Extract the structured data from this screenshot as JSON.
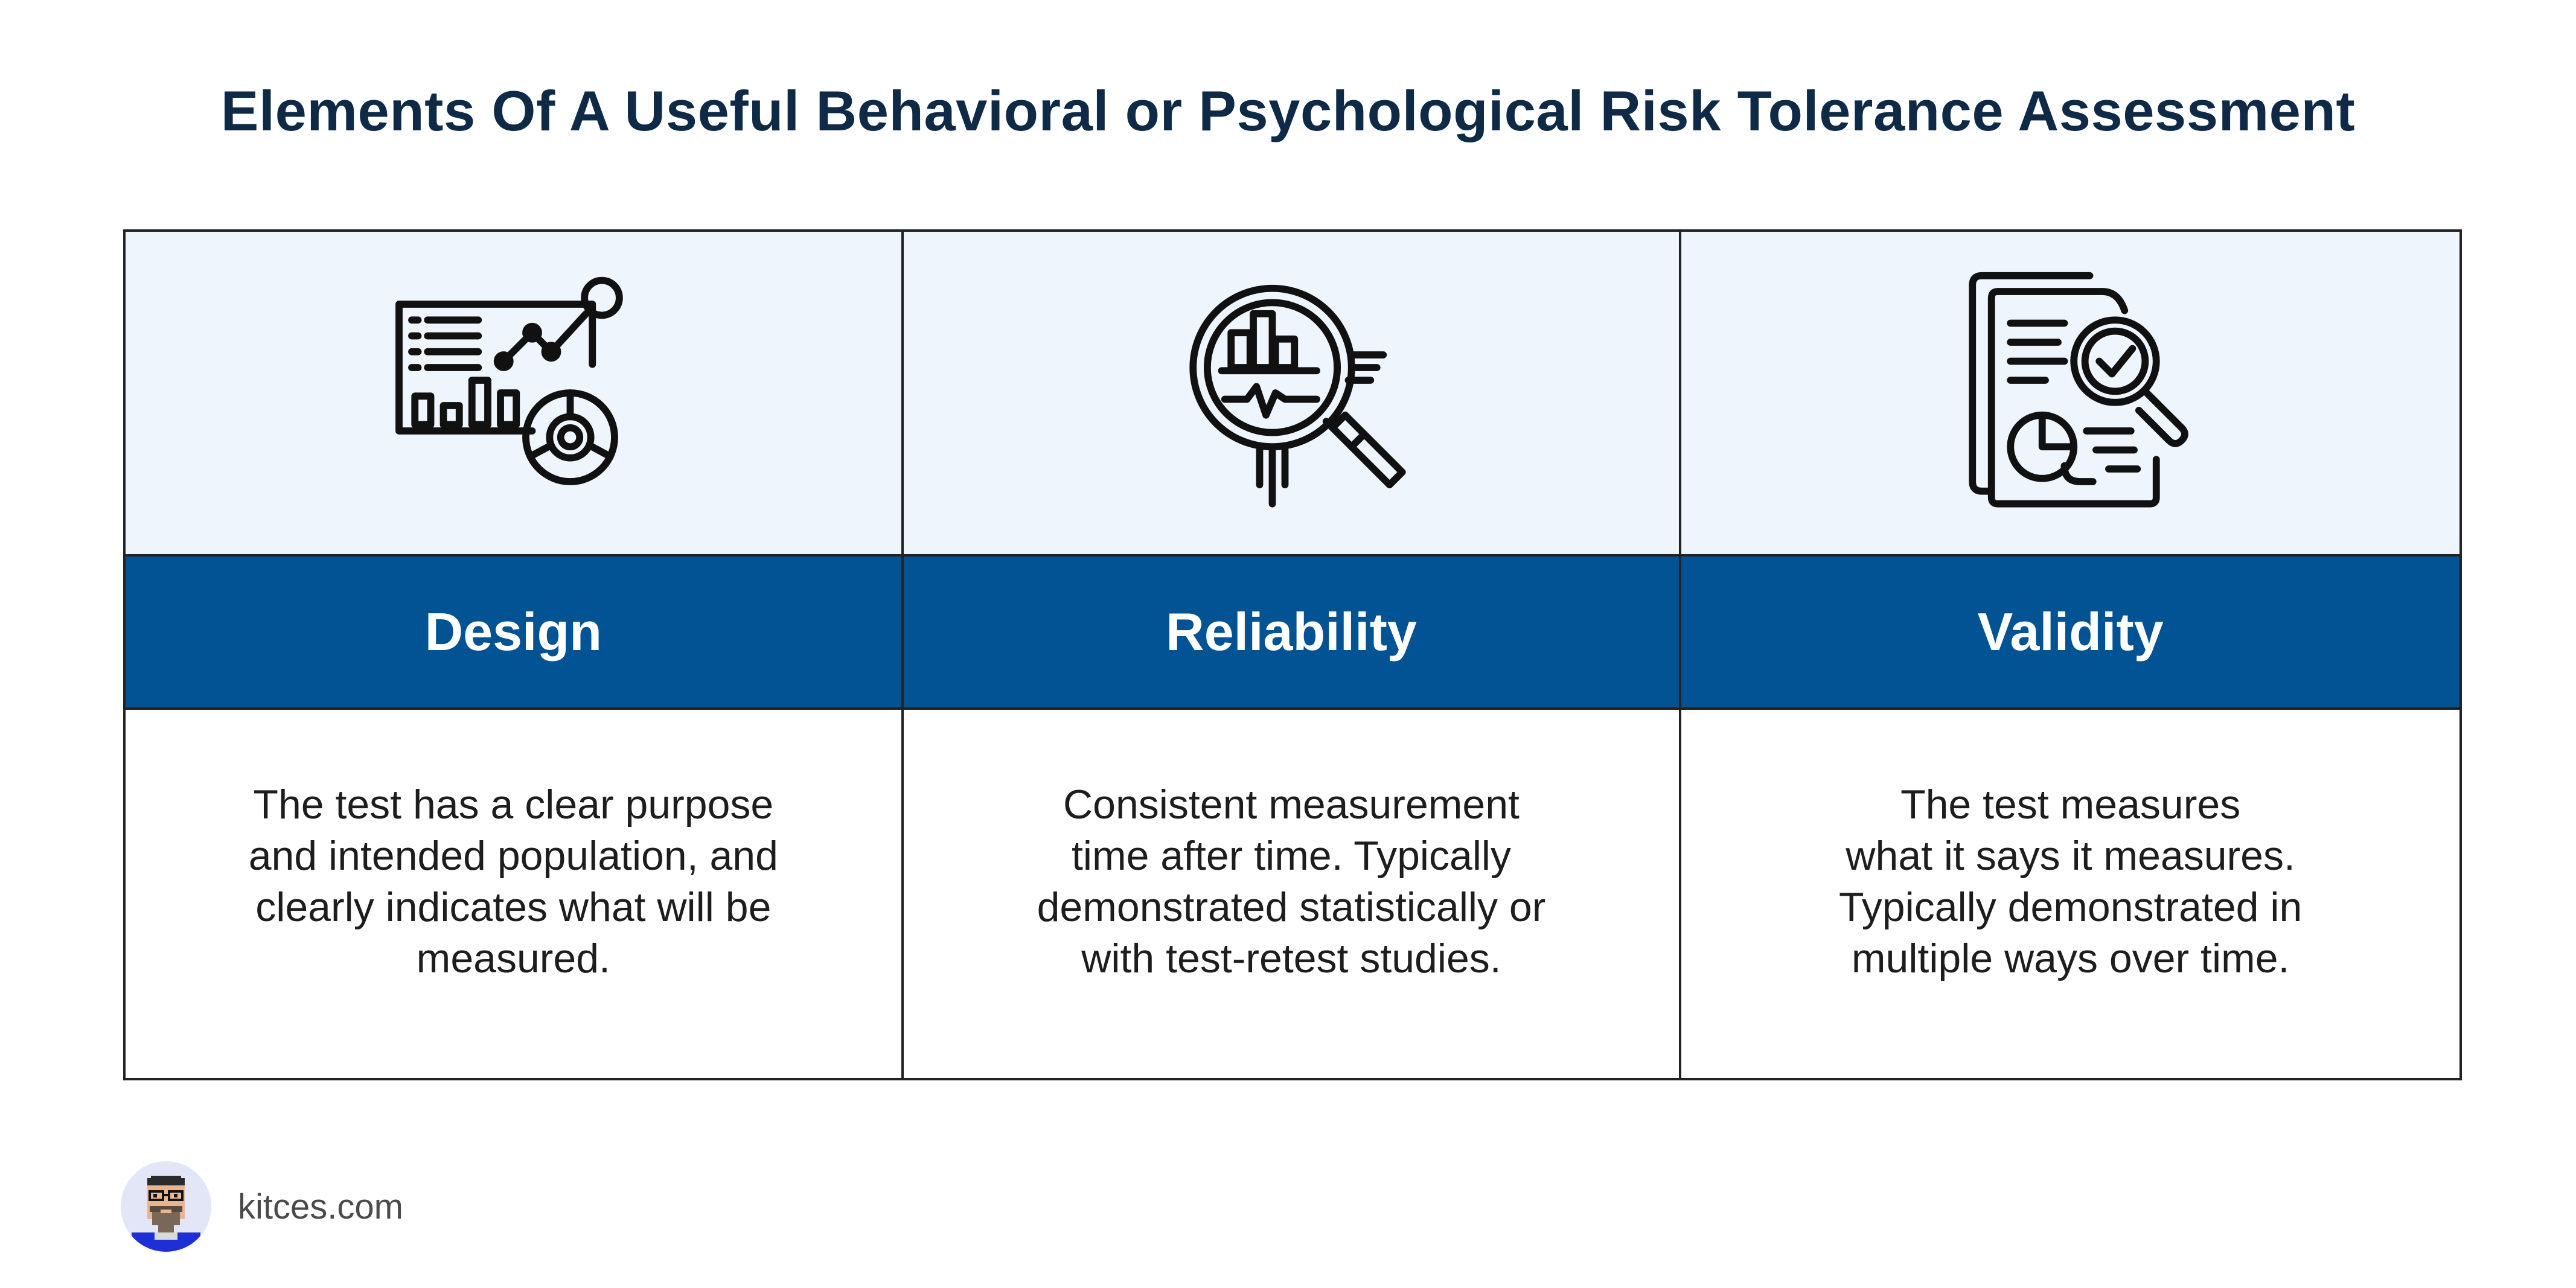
{
  "title": "Elements Of A Useful Behavioral or Psychological Risk Tolerance Assessment",
  "columns": [
    {
      "heading": "Design",
      "icon": "dashboard-analytics-icon",
      "description": "The test has a clear purpose\nand intended population, and\nclearly indicates what will be\nmeasured."
    },
    {
      "heading": "Reliability",
      "icon": "magnifier-chart-icon",
      "description": "Consistent measurement\ntime after time. Typically\ndemonstrated statistically or\nwith test-retest studies."
    },
    {
      "heading": "Validity",
      "icon": "document-check-icon",
      "description": "The test measures\nwhat it says it measures.\nTypically demonstrated in\nmultiple ways over time."
    }
  ],
  "footer": {
    "brand": "kitces.com",
    "avatar_icon": "pixel-avatar-icon"
  },
  "colors": {
    "title": "#0e2a47",
    "header_band": "#025393",
    "icon_band": "#eef5fc",
    "border": "#222222"
  }
}
